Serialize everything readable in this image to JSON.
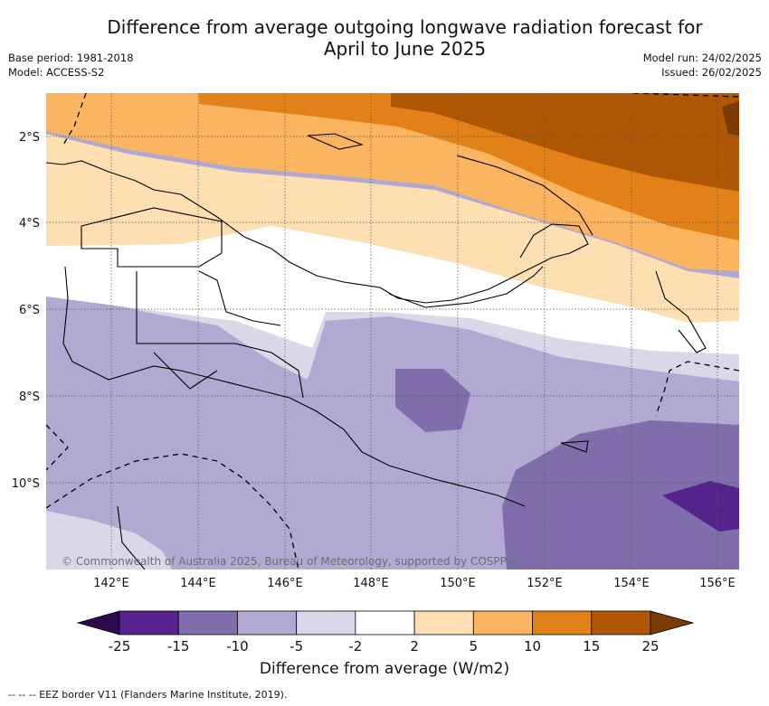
{
  "title_line1": "Difference from average outgoing longwave radiation forecast for",
  "title_line2": "April to June 2025",
  "meta_left": [
    "Base period: 1981-2018",
    "Model: ACCESS-S2"
  ],
  "meta_right": [
    "Model run: 24/02/2025",
    "Issued: 26/02/2025"
  ],
  "lat_ticks": [
    "2°S",
    "4°S",
    "6°S",
    "8°S",
    "10°S"
  ],
  "lon_ticks": [
    "142°E",
    "144°E",
    "146°E",
    "148°E",
    "150°E",
    "152°E",
    "154°E",
    "156°E"
  ],
  "copyright": "© Commonwealth of Australia 2025, Bureau of Meteorology, supported by COSPPac",
  "colorbar": {
    "labels": [
      "-25",
      "-15",
      "-10",
      "-5",
      "-2",
      "2",
      "5",
      "10",
      "15",
      "25"
    ],
    "colors": [
      "#2d0a4e",
      "#56238d",
      "#7f6eab",
      "#b1a9d1",
      "#d9d8e9",
      "#ffffff",
      "#fddfb2",
      "#fbb45f",
      "#e18117",
      "#b05705",
      "#7a3b04"
    ],
    "title": "Difference from average (W/m2)"
  },
  "footer": "-- -- -- EEZ border V11 (Flanders Marine Institute, 2019)."
}
